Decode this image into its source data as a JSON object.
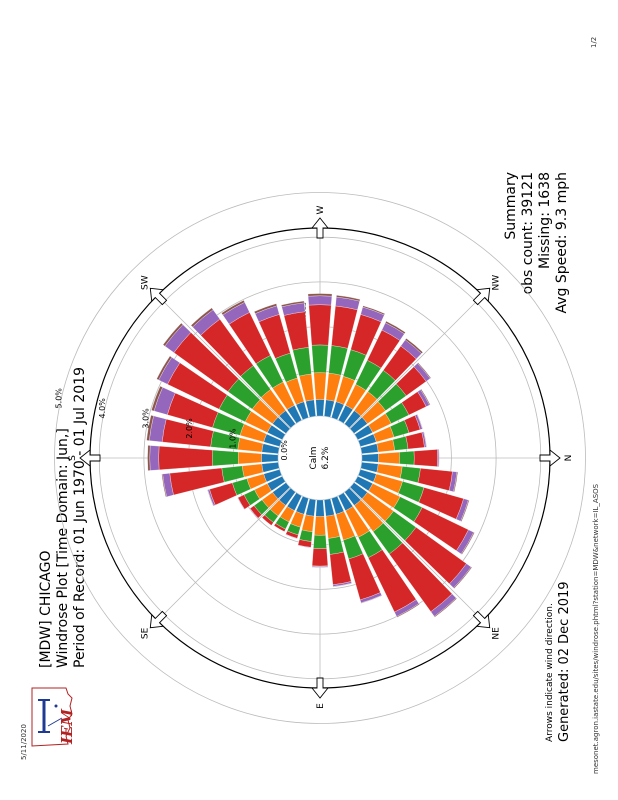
{
  "browser": {
    "date": "5/11/2020",
    "page_title": "IEM :: Site Wind Roses",
    "page_number": "1/2",
    "url": "mesonet.agron.iastate.edu/sites/windrose.phtml?station=MDW&network=IL_ASOS"
  },
  "logo": {
    "text": "IEM"
  },
  "header": {
    "line1": "[MDW] CHICAGO",
    "line2": "Windrose Plot [Time Domain: Jun,]",
    "line3": "Period of Record: 01 Jun 1970 - 01 Jul 2019"
  },
  "footer": {
    "arrows_note": "Arrows indicate wind direction.",
    "generated": "Generated: 02 Dec 2019"
  },
  "summary": {
    "title": "Summary",
    "obs_count": "obs count: 39121",
    "missing": "Missing: 1638",
    "avg_speed": "Avg Speed: 9.3 mph"
  },
  "colors": {
    "speed_bins": [
      "#1f77b4",
      "#ff7f0e",
      "#2ca02c",
      "#d62728",
      "#9467bd",
      "#8c564b"
    ],
    "grid": "#bbbbbb",
    "outline": "#000000"
  },
  "chart_data": {
    "type": "windrose",
    "directions": [
      "N",
      "NNE",
      "NE",
      "ENE",
      "E",
      "ESE",
      "SE",
      "SSE",
      "S",
      "SSW",
      "SW",
      "WSW",
      "W",
      "WNW",
      "NW",
      "NNW"
    ],
    "direction_labels": [
      "N",
      "NE",
      "E",
      "SE",
      "S",
      "SW",
      "W",
      "NW"
    ],
    "center_label": [
      "Calm",
      "6.2%"
    ],
    "ring_values": [
      1.0,
      2.0,
      3.0,
      4.0,
      5.0
    ],
    "ring_labels": [
      "1.0%",
      "2.0%",
      "3.0%",
      "4.0%",
      "5.0%"
    ],
    "inner_label": "0.0%",
    "unit": "percent of observations",
    "sectors": [
      {
        "bin": 0,
        "values": [
          0.37,
          0.47,
          0.33,
          0.52,
          0.03,
          0.01
        ]
      },
      {
        "bin": 10,
        "values": [
          0.37,
          0.54,
          0.41,
          0.72,
          0.1,
          0.02
        ]
      },
      {
        "bin": 20,
        "values": [
          0.37,
          0.61,
          0.5,
          0.92,
          0.11,
          0.02
        ]
      },
      {
        "bin": 30,
        "values": [
          0.37,
          0.68,
          0.55,
          1.15,
          0.13,
          0.02
        ]
      },
      {
        "bin": 40,
        "values": [
          0.37,
          0.72,
          0.62,
          1.39,
          0.13,
          0.02
        ]
      },
      {
        "bin": 50,
        "values": [
          0.37,
          0.72,
          0.62,
          1.59,
          0.13,
          0.02
        ]
      },
      {
        "bin": 60,
        "values": [
          0.37,
          0.66,
          0.51,
          1.35,
          0.11,
          0.02
        ]
      },
      {
        "bin": 70,
        "values": [
          0.37,
          0.6,
          0.44,
          0.95,
          0.07,
          0.01
        ]
      },
      {
        "bin": 80,
        "values": [
          0.37,
          0.5,
          0.36,
          0.68,
          0.04,
          0.01
        ]
      },
      {
        "bin": 90,
        "values": [
          0.37,
          0.42,
          0.3,
          0.39,
          0.02,
          0.01
        ]
      },
      {
        "bin": 100,
        "values": [
          0.37,
          0.35,
          0.22,
          0.13,
          0.01,
          0.0
        ]
      },
      {
        "bin": 110,
        "values": [
          0.37,
          0.3,
          0.18,
          0.08,
          0.01,
          0.0
        ]
      },
      {
        "bin": 120,
        "values": [
          0.37,
          0.28,
          0.18,
          0.06,
          0.0,
          0.0
        ]
      },
      {
        "bin": 130,
        "values": [
          0.37,
          0.29,
          0.18,
          0.08,
          0.0,
          0.0
        ]
      },
      {
        "bin": 140,
        "values": [
          0.37,
          0.29,
          0.22,
          0.11,
          0.01,
          0.0
        ]
      },
      {
        "bin": 150,
        "values": [
          0.37,
          0.32,
          0.26,
          0.15,
          0.01,
          0.0
        ]
      },
      {
        "bin": 160,
        "values": [
          0.37,
          0.39,
          0.34,
          0.53,
          0.04,
          0.01
        ]
      },
      {
        "bin": 170,
        "values": [
          0.37,
          0.44,
          0.46,
          1.17,
          0.16,
          0.02
        ]
      },
      {
        "bin": 180,
        "values": [
          0.37,
          0.52,
          0.58,
          1.2,
          0.2,
          0.05
        ]
      },
      {
        "bin": 190,
        "values": [
          0.37,
          0.54,
          0.61,
          1.09,
          0.29,
          0.06
        ]
      },
      {
        "bin": 200,
        "values": [
          0.37,
          0.55,
          0.64,
          1.05,
          0.31,
          0.06
        ]
      },
      {
        "bin": 210,
        "values": [
          0.37,
          0.55,
          0.65,
          1.28,
          0.22,
          0.05
        ]
      },
      {
        "bin": 220,
        "values": [
          0.37,
          0.56,
          0.67,
          1.49,
          0.25,
          0.05
        ]
      },
      {
        "bin": 230,
        "values": [
          0.37,
          0.58,
          0.66,
          1.28,
          0.26,
          0.05
        ]
      },
      {
        "bin": 240,
        "values": [
          0.37,
          0.58,
          0.66,
          1.07,
          0.25,
          0.05
        ]
      },
      {
        "bin": 250,
        "values": [
          0.37,
          0.55,
          0.58,
          0.9,
          0.2,
          0.05
        ]
      },
      {
        "bin": 260,
        "values": [
          0.37,
          0.58,
          0.6,
          0.8,
          0.2,
          0.04
        ]
      },
      {
        "bin": 270,
        "values": [
          0.37,
          0.6,
          0.62,
          0.9,
          0.2,
          0.05
        ]
      },
      {
        "bin": 280,
        "values": [
          0.37,
          0.6,
          0.62,
          0.89,
          0.2,
          0.04
        ]
      },
      {
        "bin": 290,
        "values": [
          0.37,
          0.59,
          0.62,
          0.82,
          0.17,
          0.03
        ]
      },
      {
        "bin": 300,
        "values": [
          0.37,
          0.52,
          0.6,
          0.75,
          0.18,
          0.04
        ]
      },
      {
        "bin": 310,
        "values": [
          0.37,
          0.52,
          0.59,
          0.67,
          0.17,
          0.04
        ]
      },
      {
        "bin": 320,
        "values": [
          0.37,
          0.5,
          0.57,
          0.55,
          0.11,
          0.02
        ]
      },
      {
        "bin": 330,
        "values": [
          0.37,
          0.46,
          0.44,
          0.43,
          0.08,
          0.02
        ]
      },
      {
        "bin": 340,
        "values": [
          0.37,
          0.41,
          0.35,
          0.26,
          0.05,
          0.01
        ]
      },
      {
        "bin": 350,
        "values": [
          0.37,
          0.37,
          0.3,
          0.37,
          0.04,
          0.01
        ]
      }
    ]
  }
}
